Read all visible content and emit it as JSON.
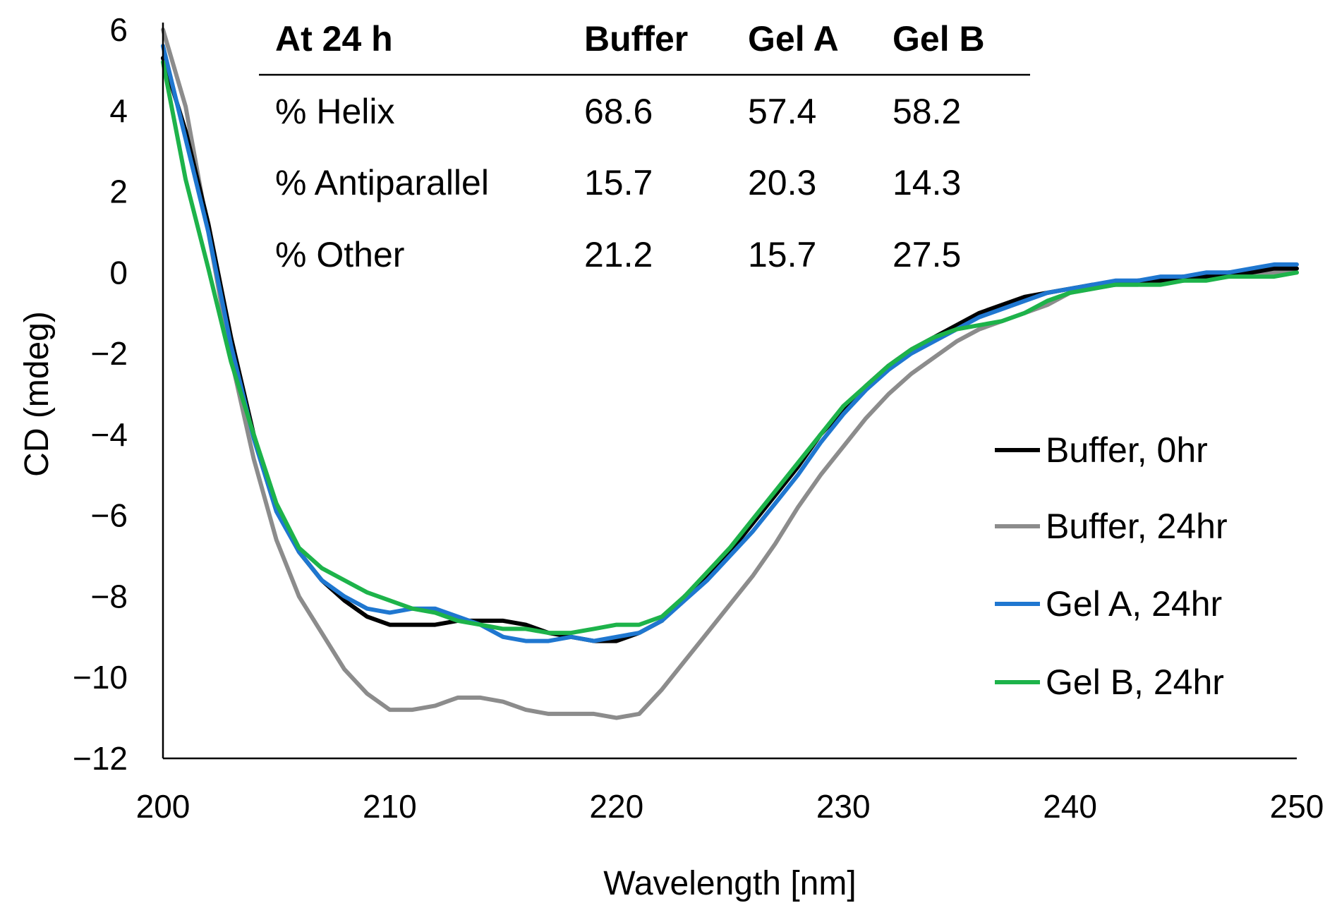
{
  "chart_data": {
    "type": "line",
    "xlabel": "Wavelength [nm]",
    "ylabel": "CD (mdeg)",
    "xlim": [
      200,
      250
    ],
    "ylim": [
      -12,
      6
    ],
    "xticks": [
      200,
      210,
      220,
      230,
      240,
      250
    ],
    "xtick_labels": [
      "200",
      "210",
      "220",
      "230",
      "240",
      "250"
    ],
    "yticks": [
      6,
      4,
      2,
      0,
      -2,
      -4,
      -6,
      -8,
      -10,
      -12
    ],
    "ytick_labels": [
      "6",
      "4",
      "2",
      "0",
      "−2",
      "−4",
      "−6",
      "−8",
      "−10",
      "−12"
    ],
    "grid": false,
    "legend_position": "right",
    "series": [
      {
        "name": "Buffer, 0hr",
        "color": "#000000",
        "x": [
          200,
          201,
          202,
          203,
          204,
          205,
          206,
          207,
          208,
          209,
          210,
          211,
          212,
          213,
          214,
          215,
          216,
          217,
          218,
          219,
          220,
          221,
          222,
          223,
          224,
          225,
          226,
          227,
          228,
          229,
          230,
          231,
          232,
          233,
          234,
          235,
          236,
          237,
          238,
          239,
          240,
          241,
          242,
          243,
          244,
          245,
          246,
          247,
          248,
          249,
          250
        ],
        "y": [
          5.3,
          3.5,
          1.2,
          -1.6,
          -4.0,
          -5.8,
          -6.9,
          -7.6,
          -8.1,
          -8.5,
          -8.7,
          -8.7,
          -8.7,
          -8.6,
          -8.6,
          -8.6,
          -8.7,
          -8.9,
          -9.0,
          -9.1,
          -9.1,
          -8.9,
          -8.6,
          -8.0,
          -7.5,
          -6.9,
          -6.2,
          -5.5,
          -4.8,
          -4.0,
          -3.4,
          -2.8,
          -2.3,
          -1.9,
          -1.6,
          -1.3,
          -1.0,
          -0.8,
          -0.6,
          -0.5,
          -0.4,
          -0.3,
          -0.3,
          -0.2,
          -0.2,
          -0.1,
          -0.1,
          0.0,
          0.0,
          0.1,
          0.1
        ]
      },
      {
        "name": "Buffer, 24hr",
        "color": "#8c8c8c",
        "x": [
          200,
          201,
          202,
          203,
          204,
          205,
          206,
          207,
          208,
          209,
          210,
          211,
          212,
          213,
          214,
          215,
          216,
          217,
          218,
          219,
          220,
          221,
          222,
          223,
          224,
          225,
          226,
          227,
          228,
          229,
          230,
          231,
          232,
          233,
          234,
          235,
          236,
          237,
          238,
          239,
          240,
          241,
          242,
          243,
          244,
          245,
          246,
          247,
          248,
          249,
          250
        ],
        "y": [
          6.0,
          4.1,
          1.0,
          -2.1,
          -4.6,
          -6.6,
          -8.0,
          -8.9,
          -9.8,
          -10.4,
          -10.8,
          -10.8,
          -10.7,
          -10.5,
          -10.5,
          -10.6,
          -10.8,
          -10.9,
          -10.9,
          -10.9,
          -11.0,
          -10.9,
          -10.3,
          -9.6,
          -8.9,
          -8.2,
          -7.5,
          -6.7,
          -5.8,
          -5.0,
          -4.3,
          -3.6,
          -3.0,
          -2.5,
          -2.1,
          -1.7,
          -1.4,
          -1.2,
          -1.0,
          -0.8,
          -0.5,
          -0.4,
          -0.3,
          -0.3,
          -0.2,
          -0.2,
          -0.1,
          -0.1,
          0.0,
          0.0,
          0.0
        ]
      },
      {
        "name": "Gel A, 24hr",
        "color": "#1f77d0",
        "x": [
          200,
          201,
          202,
          203,
          204,
          205,
          206,
          207,
          208,
          209,
          210,
          211,
          212,
          213,
          214,
          215,
          216,
          217,
          218,
          219,
          220,
          221,
          222,
          223,
          224,
          225,
          226,
          227,
          228,
          229,
          230,
          231,
          232,
          233,
          234,
          235,
          236,
          237,
          238,
          239,
          240,
          241,
          242,
          243,
          244,
          245,
          246,
          247,
          248,
          249,
          250
        ],
        "y": [
          5.6,
          3.3,
          1.0,
          -1.8,
          -4.1,
          -5.9,
          -6.9,
          -7.6,
          -8.0,
          -8.3,
          -8.4,
          -8.3,
          -8.3,
          -8.5,
          -8.7,
          -9.0,
          -9.1,
          -9.1,
          -9.0,
          -9.1,
          -9.0,
          -8.9,
          -8.6,
          -8.1,
          -7.6,
          -7.0,
          -6.4,
          -5.7,
          -5.0,
          -4.2,
          -3.5,
          -2.9,
          -2.4,
          -2.0,
          -1.7,
          -1.4,
          -1.1,
          -0.9,
          -0.7,
          -0.5,
          -0.4,
          -0.3,
          -0.2,
          -0.2,
          -0.1,
          -0.1,
          0.0,
          0.0,
          0.1,
          0.2,
          0.2
        ]
      },
      {
        "name": "Gel B, 24hr",
        "color": "#1db34a",
        "x": [
          200,
          201,
          202,
          203,
          204,
          205,
          206,
          207,
          208,
          209,
          210,
          211,
          212,
          213,
          214,
          215,
          216,
          217,
          218,
          219,
          220,
          221,
          222,
          223,
          224,
          225,
          226,
          227,
          228,
          229,
          230,
          231,
          232,
          233,
          234,
          235,
          236,
          237,
          238,
          239,
          240,
          241,
          242,
          243,
          244,
          245,
          246,
          247,
          248,
          249,
          250
        ],
        "y": [
          5.2,
          2.3,
          0.1,
          -2.2,
          -4.0,
          -5.7,
          -6.8,
          -7.3,
          -7.6,
          -7.9,
          -8.1,
          -8.3,
          -8.4,
          -8.6,
          -8.7,
          -8.8,
          -8.8,
          -8.9,
          -8.9,
          -8.8,
          -8.7,
          -8.7,
          -8.5,
          -8.0,
          -7.4,
          -6.8,
          -6.1,
          -5.4,
          -4.7,
          -4.0,
          -3.3,
          -2.8,
          -2.3,
          -1.9,
          -1.6,
          -1.4,
          -1.3,
          -1.2,
          -1.0,
          -0.7,
          -0.5,
          -0.4,
          -0.3,
          -0.3,
          -0.3,
          -0.2,
          -0.2,
          -0.1,
          -0.1,
          -0.1,
          0.0
        ]
      }
    ],
    "inset_table": {
      "headers": [
        "At 24 h",
        "Buffer",
        "Gel A",
        "Gel B"
      ],
      "rows": [
        [
          "% Helix",
          "68.6",
          "57.4",
          "58.2"
        ],
        [
          "% Antiparallel",
          "15.7",
          "20.3",
          "14.3"
        ],
        [
          "% Other",
          "21.2",
          "15.7",
          "27.5"
        ]
      ]
    }
  }
}
